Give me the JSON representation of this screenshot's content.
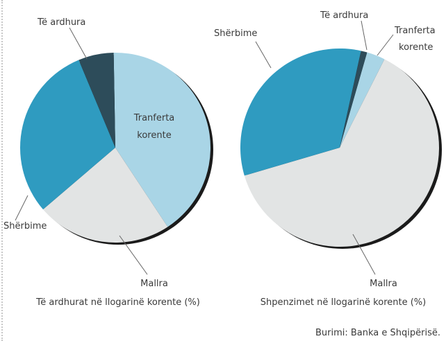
{
  "chart_data": [
    {
      "type": "pie",
      "caption": "Të ardhurat në llogarinë korente (%)",
      "slices": [
        {
          "label": "Transferta korente",
          "label_lines": [
            "Tranferta",
            "korente"
          ],
          "value": 41,
          "color": "#a9d5e6"
        },
        {
          "label": "Mallra",
          "label_lines": [
            "Mallra"
          ],
          "value": 23,
          "color": "#e2e4e4"
        },
        {
          "label": "Shërbime",
          "label_lines": [
            "Shërbime"
          ],
          "value": 30,
          "color": "#2f9bc0"
        },
        {
          "label": "Të ardhura",
          "label_lines": [
            "Të ardhura"
          ],
          "value": 6,
          "color": "#2d4c5a"
        }
      ]
    },
    {
      "type": "pie",
      "caption": "Shpenzimet në llogarinë korente (%)",
      "slices": [
        {
          "label": "Transferta korente",
          "label_lines": [
            "Tranferta",
            "korente"
          ],
          "value": 3,
          "color": "#a9d5e6"
        },
        {
          "label": "Mallra",
          "label_lines": [
            "Mallra"
          ],
          "value": 63,
          "color": "#e2e4e4"
        },
        {
          "label": "Shërbime",
          "label_lines": [
            "Shërbime"
          ],
          "value": 33,
          "color": "#2f9bc0"
        },
        {
          "label": "Të ardhura",
          "label_lines": [
            "Të ardhura"
          ],
          "value": 1,
          "color": "#2d4c5a"
        }
      ]
    }
  ],
  "source_note": "Burimi: Banka e Shqipërisë."
}
